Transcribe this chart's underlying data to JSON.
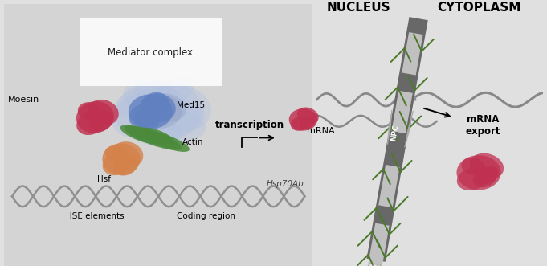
{
  "bg_color": "#e0e0e0",
  "bg_left": "#d8d8d8",
  "title_nucleus": "NUCLEUS",
  "title_cytoplasm": "CYTOPLASM",
  "label_mediator": "Mediator complex",
  "label_moesin": "Moesin",
  "label_med15": "Med15",
  "label_hsf": "Hsf",
  "label_actin": "Actin",
  "label_hse": "HSE elements",
  "label_coding": "Coding region",
  "label_hsp": "Hsp70Ab",
  "label_transcription": "transcription",
  "label_mrna": "mRNA",
  "label_npc": "NPC",
  "label_export": "mRNA\nexport",
  "color_moesin": "#c03050",
  "color_med15": "#6080c0",
  "color_hsf": "#d4824a",
  "color_actin": "#4a8a3a",
  "color_mediator_light": "#b0c0e0",
  "color_mediator_dark": "#8090b8",
  "color_dna": "#909090",
  "color_npc_dark": "#686868",
  "color_npc_light": "#c0c0c0",
  "color_mrna_wave": "#888888",
  "color_filament": "#4a7a2a",
  "color_fibril": "#aaaaaa"
}
